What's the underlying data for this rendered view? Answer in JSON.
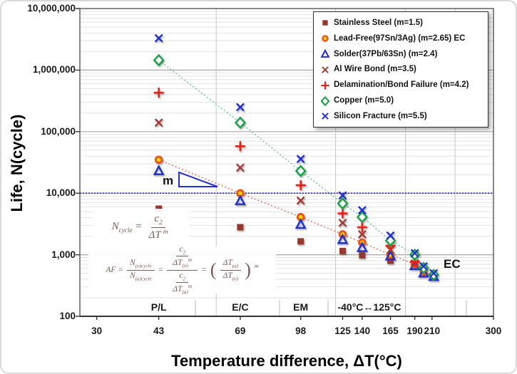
{
  "chart_data": {
    "type": "scatter",
    "title": "",
    "xlabel": "Temperature difference, ΔT(°C)",
    "ylabel": "Life, N(cycle)",
    "x_scale": "log",
    "y_scale": "log",
    "xlim": [
      27.2,
      300
    ],
    "ylim": [
      100,
      10000000
    ],
    "grid": true,
    "x_ticks": [
      {
        "v": 30,
        "label": "30"
      },
      {
        "v": 43,
        "label": "43"
      },
      {
        "v": 69,
        "label": "69"
      },
      {
        "v": 98,
        "label": "98"
      },
      {
        "v": 125,
        "label": "125"
      },
      {
        "v": 140,
        "label": "140"
      },
      {
        "v": 165,
        "label": "165"
      },
      {
        "v": 190,
        "label": "190"
      },
      {
        "v": 210,
        "label": "210"
      },
      {
        "v": 300,
        "label": "300"
      }
    ],
    "y_ticks": [
      {
        "v": 100,
        "label": "100"
      },
      {
        "v": 1000,
        "label": "1,000"
      },
      {
        "v": 10000,
        "label": "10,000"
      },
      {
        "v": 100000,
        "label": "100,000"
      },
      {
        "v": 1000000,
        "label": "1,000,000"
      },
      {
        "v": 10000000,
        "label": "10,000,000"
      }
    ],
    "x_minor_gridlines": [
      60,
      120,
      180,
      240
    ],
    "reference_line": {
      "y": 10000,
      "color": "#2323cc"
    },
    "zone_labels": [
      {
        "label": "P/L",
        "x": 43
      },
      {
        "label": "E/C",
        "x": 69
      },
      {
        "label": "EM",
        "x": 98
      },
      {
        "label": "-40°C↔125°C",
        "x": 146
      }
    ],
    "series": [
      {
        "name": "Stainless Steel (m=1.5)",
        "marker": "square",
        "color": "#96372D",
        "fill": "#96372D",
        "points": [
          [
            43,
            5600
          ],
          [
            69,
            2800
          ],
          [
            98,
            1650
          ],
          [
            125,
            1150
          ],
          [
            140,
            980
          ],
          [
            165,
            800
          ]
        ]
      },
      {
        "name": "Lead-Free(97Sn/3Ag) (m=2.65) EC",
        "marker": "circle",
        "color": "#E8531F",
        "fill": "#FFD800",
        "trend_color": "#E07A6A",
        "points": [
          [
            43,
            35000
          ],
          [
            69,
            10000
          ],
          [
            98,
            4100
          ],
          [
            125,
            2150
          ],
          [
            140,
            1580
          ],
          [
            165,
            1000
          ],
          [
            190,
            700
          ],
          [
            200,
            530
          ],
          [
            212,
            460
          ]
        ]
      },
      {
        "name": "Solder(37Pb/63Sn) (m=2.4)",
        "marker": "triangle",
        "color": "#2430C8",
        "fill": "none",
        "points": [
          [
            43,
            23000
          ],
          [
            69,
            7500
          ],
          [
            98,
            3100
          ],
          [
            125,
            1750
          ],
          [
            140,
            1300
          ],
          [
            165,
            950
          ],
          [
            190,
            660
          ],
          [
            200,
            500
          ],
          [
            212,
            440
          ]
        ]
      },
      {
        "name": "Al Wire Bond (m=3.5)",
        "marker": "x",
        "color": "#A03B35",
        "fill": "none",
        "points": [
          [
            43,
            140000
          ],
          [
            69,
            26000
          ],
          [
            98,
            7600
          ],
          [
            125,
            3300
          ],
          [
            140,
            2150
          ],
          [
            165,
            1200
          ],
          [
            190,
            720
          ]
        ]
      },
      {
        "name": "Delamination/Bond Failure (m=4.2)",
        "marker": "plus",
        "color": "#E32219",
        "fill": "none",
        "points": [
          [
            43,
            430000
          ],
          [
            69,
            58000
          ],
          [
            98,
            13500
          ],
          [
            125,
            4700
          ],
          [
            140,
            2800
          ],
          [
            165,
            1400
          ],
          [
            190,
            770
          ]
        ]
      },
      {
        "name": "Copper (m=5.0)",
        "marker": "diamond",
        "color": "#1CA049",
        "fill": "#ffffff",
        "trend_color": "#74C893",
        "points": [
          [
            43,
            1450000
          ],
          [
            69,
            140000
          ],
          [
            98,
            23000
          ],
          [
            125,
            6800
          ],
          [
            140,
            4100
          ],
          [
            165,
            1700
          ],
          [
            190,
            1000
          ],
          [
            200,
            610
          ],
          [
            212,
            470
          ]
        ]
      },
      {
        "name": "Silicon Fracture (m=5.5)",
        "marker": "x",
        "color": "#2430C8",
        "fill": "none",
        "points": [
          [
            43,
            3300000
          ],
          [
            69,
            250000
          ],
          [
            98,
            36000
          ],
          [
            125,
            9200
          ],
          [
            140,
            5300
          ],
          [
            165,
            2050
          ],
          [
            190,
            1060
          ],
          [
            200,
            650
          ],
          [
            212,
            500
          ]
        ]
      }
    ],
    "annotations": {
      "slope_label": "m",
      "ec_label": "EC"
    }
  },
  "formulas": {
    "f1": {
      "lhs": "N",
      "lhs_sub": "cycle",
      "eq": "=",
      "num": "c",
      "num_sub": "2",
      "den": "ΔT",
      "den_exp": "m"
    },
    "f2": {
      "lhs": "AF",
      "eq1": "=",
      "n_num": "N",
      "n_num_sub": "(o)cycle",
      "n_den": "N",
      "n_den_sub": "(a)cycle",
      "eq2": "=",
      "g1_num": "c",
      "g1_num_sub": "2",
      "g1_den": "ΔT",
      "g1_den_sub": "(o)",
      "g1_den_exp": "m",
      "g2_num": "c",
      "g2_num_sub": "2",
      "g2_den": "ΔT",
      "g2_den_sub": "(a)",
      "g2_den_exp": "m",
      "eq3": "=",
      "lparen": "(",
      "r_num": "ΔT",
      "r_num_sub": "(a)",
      "r_den": "ΔT",
      "r_den_sub": "(o)",
      "rparen": ")",
      "r_exp": "m"
    }
  }
}
